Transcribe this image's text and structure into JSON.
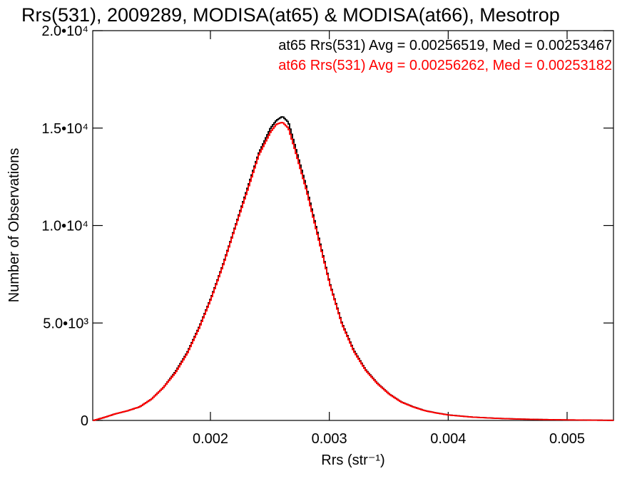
{
  "chart_data": {
    "type": "line",
    "title": "Rrs(531), 2009289, MODISA(at65) & MODISA(at66), Mesotrop",
    "xlabel": "Rrs (str⁻¹)",
    "ylabel": "Number of Observations",
    "xlim": [
      0.00101,
      0.00539
    ],
    "ylim": [
      0,
      20000
    ],
    "x_ticks": [
      {
        "value": 0.002,
        "label": "0.002"
      },
      {
        "value": 0.003,
        "label": "0.003"
      },
      {
        "value": 0.004,
        "label": "0.004"
      },
      {
        "value": 0.005,
        "label": "0.005"
      }
    ],
    "y_ticks": [
      {
        "value": 0,
        "label": "0"
      },
      {
        "value": 5000,
        "label": "5.0•10³"
      },
      {
        "value": 10000,
        "label": "1.0•10⁴"
      },
      {
        "value": 15000,
        "label": "1.5•10⁴"
      },
      {
        "value": 20000,
        "label": "2.0•10⁴"
      }
    ],
    "grid": false,
    "legend_position": "top-right",
    "series": [
      {
        "name": "at65",
        "legend": "at65 Rrs(531) Avg = 0.00256519, Med = 0.00253467",
        "color": "#000000",
        "x": [
          0.00101,
          0.0011,
          0.0012,
          0.0013,
          0.0014,
          0.0015,
          0.0016,
          0.0017,
          0.0018,
          0.0019,
          0.002,
          0.0021,
          0.0022,
          0.0023,
          0.0024,
          0.0025,
          0.00255,
          0.0026,
          0.00265,
          0.0027,
          0.0028,
          0.0029,
          0.003,
          0.0031,
          0.0032,
          0.0033,
          0.0034,
          0.0035,
          0.0036,
          0.0037,
          0.0038,
          0.0039,
          0.004,
          0.0042,
          0.0044,
          0.0046,
          0.0048,
          0.005,
          0.0052,
          0.00539
        ],
        "y": [
          0,
          150,
          350,
          500,
          700,
          1100,
          1700,
          2500,
          3500,
          4800,
          6300,
          8000,
          9900,
          11800,
          13700,
          15000,
          15400,
          15600,
          15300,
          14200,
          12000,
          9500,
          7000,
          5000,
          3600,
          2600,
          1900,
          1350,
          950,
          700,
          500,
          380,
          280,
          170,
          110,
          70,
          45,
          28,
          15,
          5
        ]
      },
      {
        "name": "at66",
        "legend": "at66 Rrs(531) Avg = 0.00256262, Med = 0.00253182",
        "color": "#ff0000",
        "x": [
          0.00101,
          0.0011,
          0.0012,
          0.0013,
          0.0014,
          0.0015,
          0.0016,
          0.0017,
          0.0018,
          0.0019,
          0.002,
          0.0021,
          0.0022,
          0.0023,
          0.0024,
          0.0025,
          0.00255,
          0.0026,
          0.00265,
          0.0027,
          0.0028,
          0.0029,
          0.003,
          0.0031,
          0.0032,
          0.0033,
          0.0034,
          0.0035,
          0.0036,
          0.0037,
          0.0038,
          0.0039,
          0.004,
          0.0042,
          0.0044,
          0.0046,
          0.0048,
          0.005,
          0.0052,
          0.00539
        ],
        "y": [
          0,
          150,
          350,
          500,
          700,
          1100,
          1700,
          2450,
          3450,
          4750,
          6250,
          7950,
          9850,
          11700,
          13600,
          14800,
          15200,
          15300,
          15000,
          14000,
          11850,
          9400,
          6950,
          4950,
          3550,
          2570,
          1880,
          1340,
          940,
          690,
          495,
          375,
          275,
          168,
          108,
          68,
          44,
          27,
          15,
          5
        ]
      }
    ]
  }
}
